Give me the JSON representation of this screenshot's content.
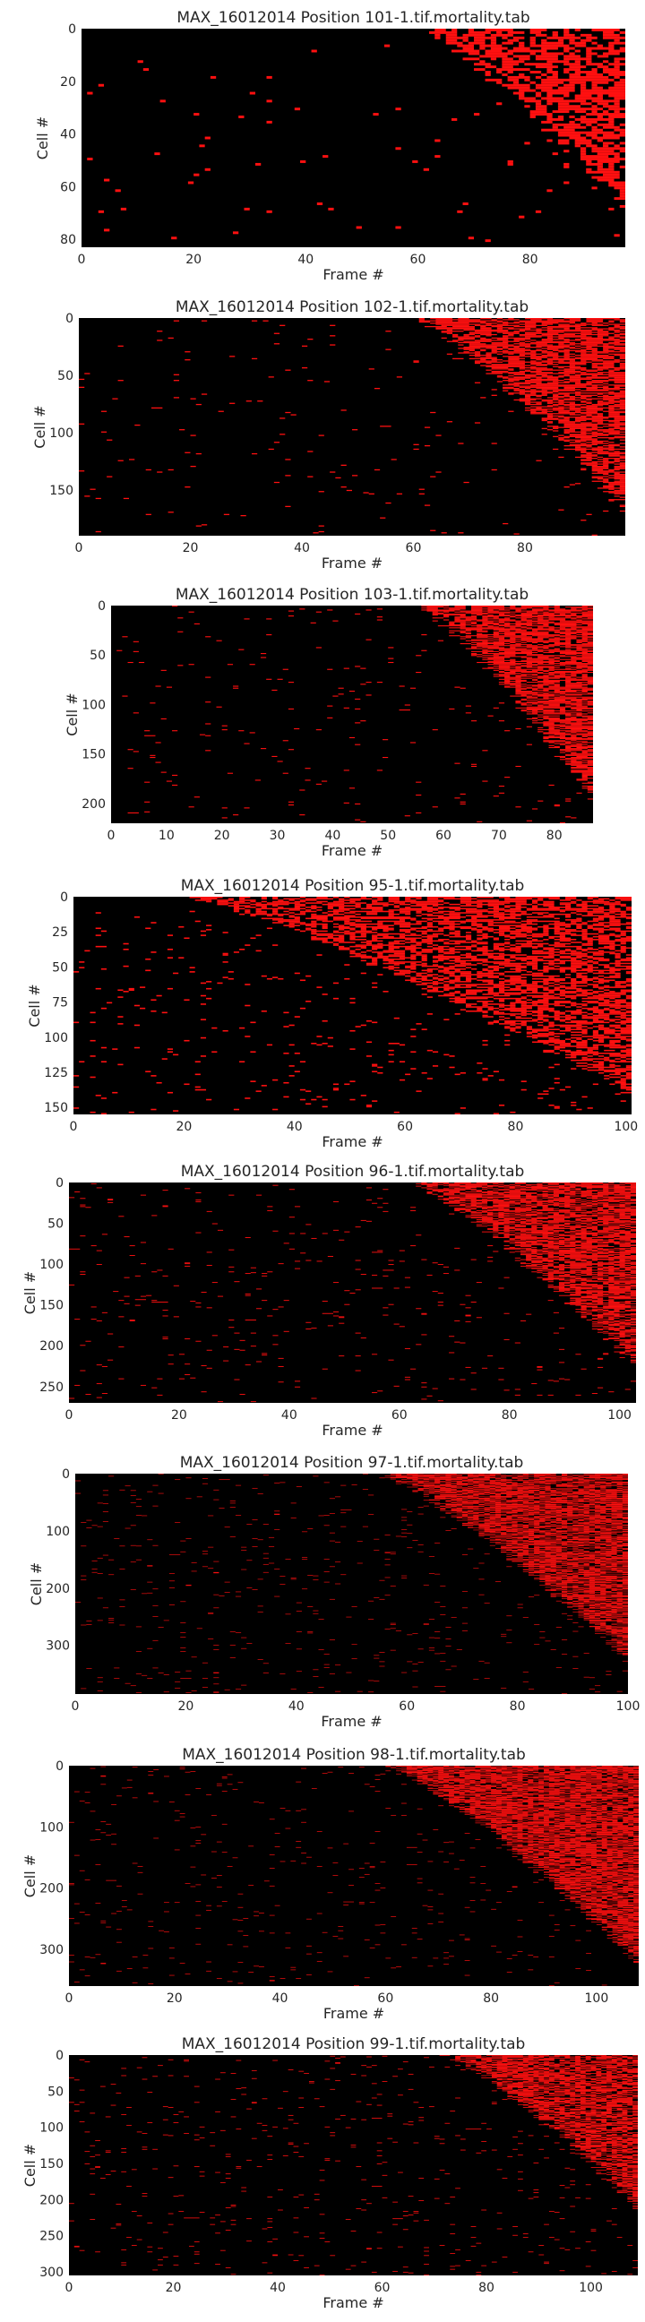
{
  "colors": {
    "background": "#000000",
    "event": "#ff1010",
    "text": "#262626",
    "page": "#ffffff"
  },
  "chart_data": [
    {
      "type": "heatmap",
      "title": "MAX_16012014 Position 101-1.tif.mortality.tab",
      "xlabel": "Frame #",
      "ylabel": "Cell #",
      "xlim": [
        0,
        97
      ],
      "ylim": [
        83,
        0
      ],
      "n_frames": 97,
      "n_cells": 83,
      "xticks": [
        0,
        20,
        40,
        60,
        80
      ],
      "yticks": [
        0,
        20,
        40,
        60,
        80
      ],
      "onset_range": [
        60,
        97
      ],
      "tail_fraction": 0.15,
      "sparse_density": 0.01,
      "dense_density": 0.65,
      "grid": false,
      "legend": "none"
    },
    {
      "type": "heatmap",
      "title": "MAX_16012014 Position 102-1.tif.mortality.tab",
      "xlabel": "Frame #",
      "ylabel": "Cell #",
      "xlim": [
        0,
        98
      ],
      "ylim": [
        190,
        0
      ],
      "n_frames": 98,
      "n_cells": 190,
      "xticks": [
        0,
        20,
        40,
        60,
        80
      ],
      "yticks": [
        0,
        50,
        100,
        150
      ],
      "onset_range": [
        60,
        98
      ],
      "tail_fraction": 0.1,
      "sparse_density": 0.01,
      "dense_density": 0.7,
      "grid": false,
      "legend": "none"
    },
    {
      "type": "heatmap",
      "title": "MAX_16012014 Position 103-1.tif.mortality.tab",
      "xlabel": "Frame #",
      "ylabel": "Cell #",
      "xlim": [
        0,
        87
      ],
      "ylim": [
        220,
        0
      ],
      "n_frames": 87,
      "n_cells": 220,
      "xticks": [
        0,
        10,
        20,
        30,
        40,
        50,
        60,
        70,
        80
      ],
      "yticks": [
        0,
        50,
        100,
        150,
        200
      ],
      "onset_range": [
        55,
        87
      ],
      "tail_fraction": 0.1,
      "sparse_density": 0.012,
      "dense_density": 0.75,
      "grid": false,
      "legend": "none"
    },
    {
      "type": "heatmap",
      "title": "MAX_16012014 Position 95-1.tif.mortality.tab",
      "xlabel": "Frame #",
      "ylabel": "Cell #",
      "xlim": [
        0,
        101
      ],
      "ylim": [
        155,
        0
      ],
      "n_frames": 101,
      "n_cells": 155,
      "xticks": [
        0,
        20,
        40,
        60,
        80,
        100
      ],
      "yticks": [
        0,
        25,
        50,
        75,
        100,
        125,
        150
      ],
      "onset_range": [
        20,
        101
      ],
      "tail_fraction": 0.08,
      "sparse_density": 0.03,
      "dense_density": 0.6,
      "grid": false,
      "legend": "none"
    },
    {
      "type": "heatmap",
      "title": "MAX_16012014 Position 96-1.tif.mortality.tab",
      "xlabel": "Frame #",
      "ylabel": "Cell #",
      "xlim": [
        0,
        103
      ],
      "ylim": [
        270,
        0
      ],
      "n_frames": 103,
      "n_cells": 270,
      "xticks": [
        0,
        20,
        40,
        60,
        80,
        100
      ],
      "yticks": [
        0,
        50,
        100,
        150,
        200,
        250
      ],
      "onset_range": [
        62,
        103
      ],
      "tail_fraction": 0.15,
      "sparse_density": 0.015,
      "dense_density": 0.7,
      "grid": false,
      "legend": "none"
    },
    {
      "type": "heatmap",
      "title": "MAX_16012014 Position 97-1.tif.mortality.tab",
      "xlabel": "Frame #",
      "ylabel": "Cell #",
      "xlim": [
        0,
        100
      ],
      "ylim": [
        385,
        0
      ],
      "n_frames": 100,
      "n_cells": 385,
      "xticks": [
        0,
        20,
        40,
        60,
        80,
        100
      ],
      "yticks": [
        0,
        100,
        200,
        300
      ],
      "onset_range": [
        55,
        100
      ],
      "tail_fraction": 0.15,
      "sparse_density": 0.015,
      "dense_density": 0.7,
      "grid": false,
      "legend": "none"
    },
    {
      "type": "heatmap",
      "title": "MAX_16012014 Position 98-1.tif.mortality.tab",
      "xlabel": "Frame #",
      "ylabel": "Cell #",
      "xlim": [
        0,
        108
      ],
      "ylim": [
        360,
        0
      ],
      "n_frames": 108,
      "n_cells": 360,
      "xticks": [
        0,
        20,
        40,
        60,
        80,
        100
      ],
      "yticks": [
        0,
        100,
        200,
        300
      ],
      "onset_range": [
        60,
        108
      ],
      "tail_fraction": 0.1,
      "sparse_density": 0.012,
      "dense_density": 0.75,
      "grid": false,
      "legend": "none"
    },
    {
      "type": "heatmap",
      "title": "MAX_16012014 Position 99-1.tif.mortality.tab",
      "xlabel": "Frame #",
      "ylabel": "Cell #",
      "xlim": [
        0,
        109
      ],
      "ylim": [
        305,
        0
      ],
      "n_frames": 109,
      "n_cells": 305,
      "xticks": [
        0,
        20,
        40,
        60,
        80,
        100
      ],
      "yticks": [
        0,
        50,
        100,
        150,
        200,
        250,
        300
      ],
      "onset_range": [
        72,
        109
      ],
      "tail_fraction": 0.3,
      "sparse_density": 0.015,
      "dense_density": 0.7,
      "grid": false,
      "legend": "none"
    }
  ]
}
